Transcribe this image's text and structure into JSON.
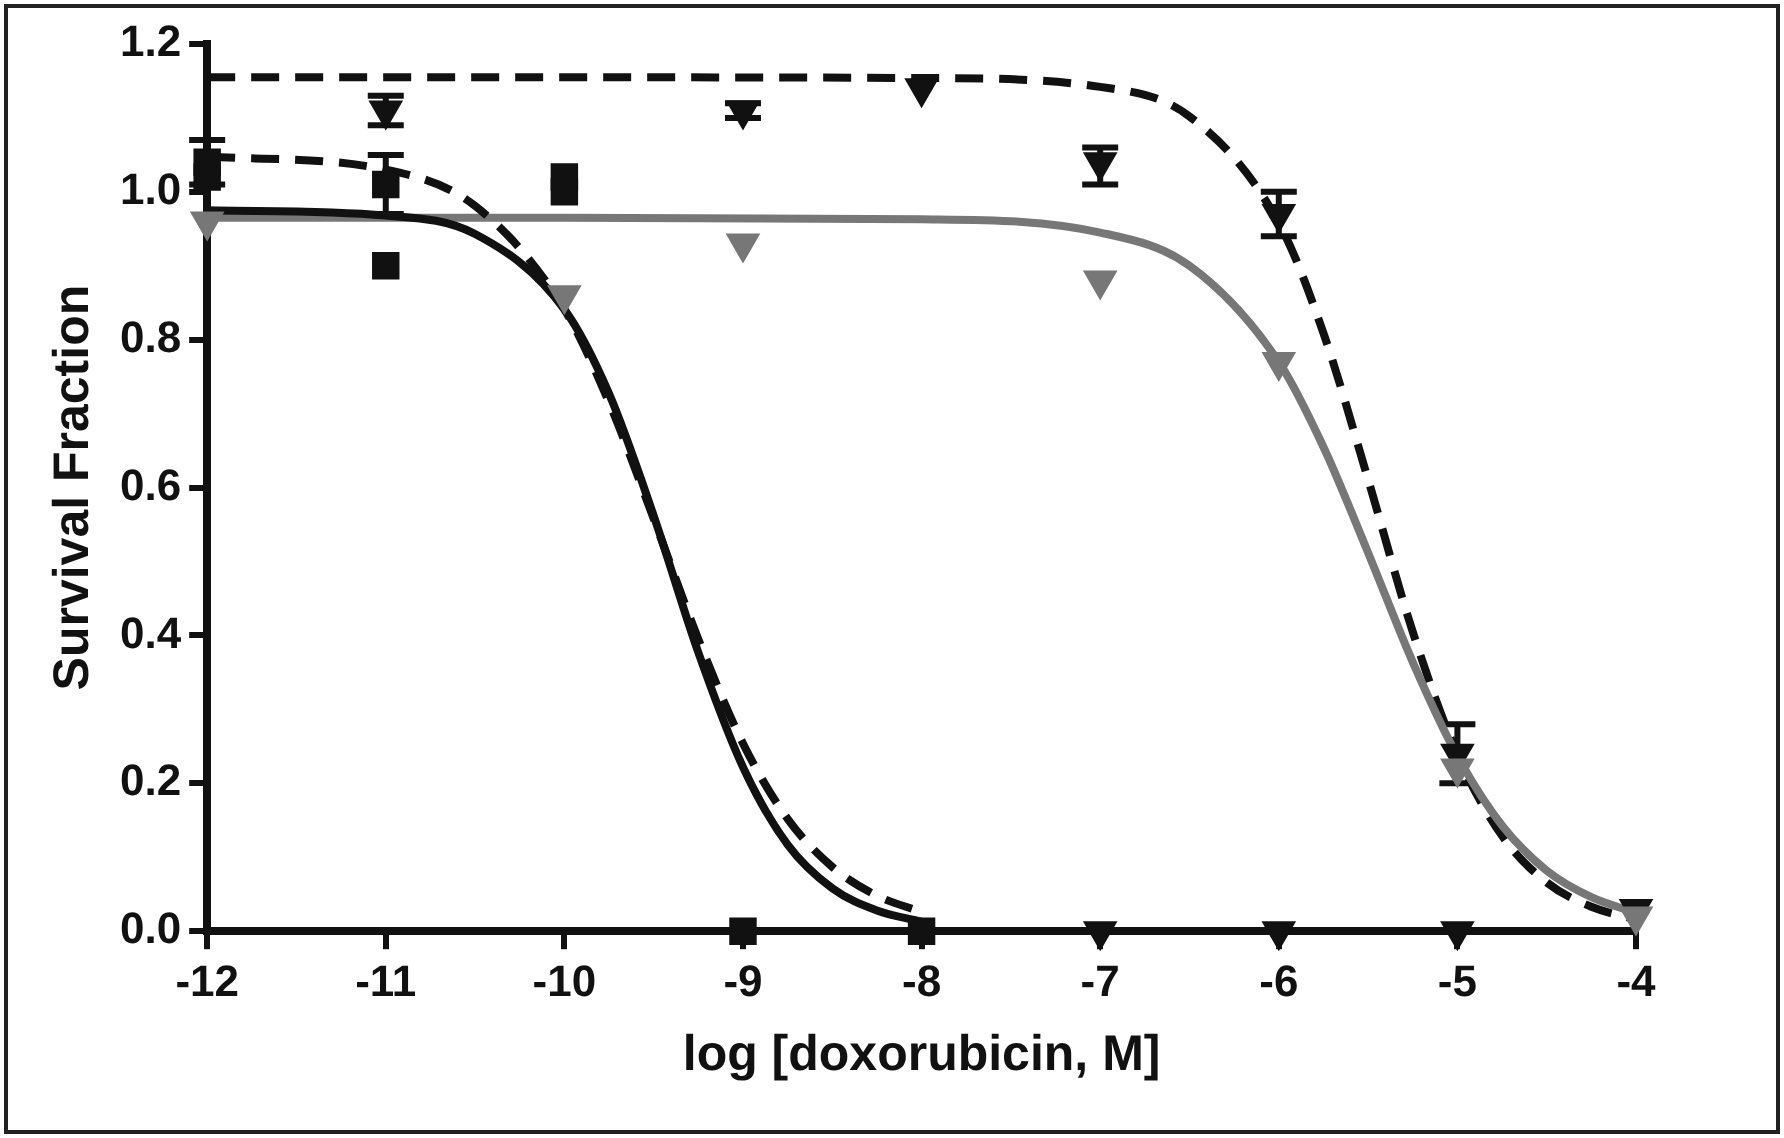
{
  "chart_data": {
    "type": "scatter",
    "xlabel": "log [doxorubicin, M]",
    "ylabel": "Survival Fraction",
    "xlim": [
      -12,
      -4
    ],
    "xticks": [
      -12,
      -11,
      -10,
      -9,
      -8,
      -7,
      -6,
      -5,
      -4
    ],
    "ylim": [
      0,
      1.2
    ],
    "yticks": [
      {
        "value": 0,
        "label": "0.0"
      },
      {
        "value": 0.2,
        "label": "0.2"
      },
      {
        "value": 0.4,
        "label": "0.4"
      },
      {
        "value": 0.6,
        "label": "0.6"
      },
      {
        "value": 0.8,
        "label": "0.8"
      },
      {
        "value": 1,
        "label": "1.0"
      },
      {
        "value": 1.2,
        "label": "1.2"
      }
    ],
    "grid": false,
    "legend": false,
    "series": [
      {
        "type": "line",
        "color": "#111111",
        "marker": "none",
        "line_style": "solid",
        "x": [
          -12,
          -11,
          -10.5,
          -10,
          -9.75,
          -9.5,
          -9.25,
          -9,
          -8.75,
          -8.5,
          -8.25,
          -8
        ],
        "values": [
          0.975,
          0.968,
          0.943,
          0.841,
          0.727,
          0.562,
          0.377,
          0.222,
          0.117,
          0.058,
          0.028,
          0.013
        ]
      },
      {
        "type": "line",
        "color": "#111111",
        "marker": "none",
        "line_style": "dashed",
        "x": [
          -12,
          -11,
          -10.5,
          -10,
          -9.75,
          -9.5,
          -9.25,
          -9,
          -8.75,
          -8.5,
          -8.25,
          -8
        ],
        "values": [
          1.048,
          1.03,
          0.981,
          0.841,
          0.715,
          0.558,
          0.395,
          0.254,
          0.152,
          0.087,
          0.048,
          0.026
        ]
      },
      {
        "type": "line",
        "color": "#777777",
        "marker": "none",
        "line_style": "solid",
        "x": [
          -12,
          -10,
          -8,
          -7,
          -6.5,
          -6,
          -5.75,
          -5.5,
          -5.25,
          -5,
          -4.75,
          -4.5,
          -4.25,
          -4
        ],
        "values": [
          0.965,
          0.965,
          0.963,
          0.945,
          0.9,
          0.77,
          0.655,
          0.512,
          0.364,
          0.237,
          0.143,
          0.082,
          0.046,
          0.025
        ]
      },
      {
        "type": "line",
        "color": "#111111",
        "marker": "none",
        "line_style": "dashed",
        "x": [
          -12,
          -10,
          -8,
          -7,
          -6.5,
          -6,
          -5.75,
          -5.5,
          -5.25,
          -5,
          -4.75,
          -4.5,
          -4.25,
          -4
        ],
        "values": [
          1.155,
          1.155,
          1.154,
          1.142,
          1.102,
          0.958,
          0.809,
          0.611,
          0.405,
          0.239,
          0.129,
          0.066,
          0.033,
          0.016
        ]
      },
      {
        "color": "#111111",
        "marker": "square",
        "x": [
          -12,
          -11,
          -10,
          -9,
          -8
        ],
        "values": [
          1.04,
          1.01,
          1.02,
          0,
          0
        ],
        "errors": [
          0.03,
          0.04,
          null,
          null,
          null
        ]
      },
      {
        "color": "#111111",
        "marker": "square",
        "x": [
          -12,
          -11,
          -10
        ],
        "values": [
          1.02,
          0.9,
          1.0
        ]
      },
      {
        "color": "#777777",
        "marker": "triangle",
        "x": [
          -12,
          -10,
          -9,
          -7,
          -6,
          -5,
          -4
        ],
        "values": [
          0.96,
          0.86,
          0.93,
          0.88,
          0.77,
          0.22,
          0.02
        ]
      },
      {
        "color": "#111111",
        "marker": "triangle",
        "x": [
          -11,
          -9,
          -8,
          -7,
          -6,
          -5,
          -4
        ],
        "values": [
          1.11,
          1.11,
          1.14,
          1.04,
          0.97,
          0.24,
          0.03
        ],
        "errors": [
          0.02,
          0.01,
          null,
          [
            1.01,
            1.06
          ],
          0.03,
          0.04,
          null
        ]
      },
      {
        "color": "#111111",
        "marker": "triangle",
        "x": [
          -7,
          -6,
          -5
        ],
        "values": [
          0,
          0,
          0
        ]
      }
    ]
  }
}
